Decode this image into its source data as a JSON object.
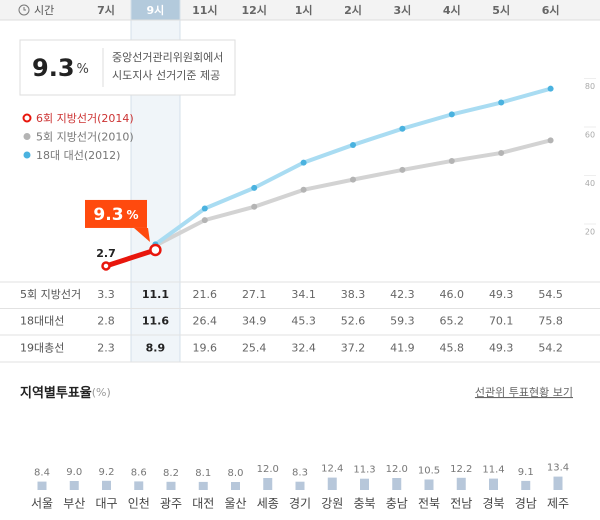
{
  "header": {
    "time_label": "시간"
  },
  "info": {
    "source": [
      "중앙선거관리위원회에서",
      "시도지사 선거기준 제공"
    ]
  },
  "chart_data": [
    {
      "type": "line",
      "unit": "%",
      "categories": [
        "7시",
        "9시",
        "11시",
        "12시",
        "1시",
        "2시",
        "3시",
        "4시",
        "5시",
        "6시"
      ],
      "ylim": [
        0,
        100
      ],
      "yticks": [
        20,
        40,
        60,
        80
      ],
      "series": [
        {
          "name": "6회 지방선거(2014)",
          "color": "#e8160c",
          "values": [
            2.7,
            9.3,
            null,
            null,
            null,
            null,
            null,
            null,
            null,
            null
          ]
        },
        {
          "name": "5회 지방선거(2010)",
          "color": "#b4b4b4",
          "values": [
            null,
            11.1,
            21.6,
            27.1,
            34.1,
            38.3,
            42.3,
            46.0,
            49.3,
            54.5
          ]
        },
        {
          "name": "18대 대선(2012)",
          "color": "#4ab2df",
          "values": [
            null,
            11.6,
            26.4,
            34.9,
            45.3,
            52.6,
            59.3,
            65.2,
            70.1,
            75.8
          ]
        }
      ]
    },
    {
      "type": "bar",
      "title": "지역별투표율",
      "unit_label": "(%)",
      "link": "선관위 투표현황 보기",
      "color": "#b7c7da",
      "ylim": [
        0,
        100
      ],
      "categories": [
        "서울",
        "부산",
        "대구",
        "인천",
        "광주",
        "대전",
        "울산",
        "세종",
        "경기",
        "강원",
        "충북",
        "충남",
        "전북",
        "전남",
        "경북",
        "경남",
        "제주"
      ],
      "values": [
        8.4,
        9.0,
        9.2,
        8.6,
        8.2,
        8.1,
        8.0,
        12.0,
        8.3,
        12.4,
        11.3,
        12.0,
        10.5,
        12.2,
        11.4,
        9.1,
        13.4
      ],
      "value_labels": [
        "8.4",
        "9.0",
        "9.2",
        "8.6",
        "8.2",
        "8.1",
        "8.0",
        "12.0",
        "8.3",
        "12.4",
        "11.3",
        "12.0",
        "10.5",
        "12.2",
        "11.4",
        "9.1",
        "13.4"
      ]
    }
  ],
  "table": {
    "rows": [
      {
        "label": "5회 지방선거",
        "values": [
          "3.3",
          "11.1",
          "21.6",
          "27.1",
          "34.1",
          "38.3",
          "42.3",
          "46.0",
          "49.3",
          "54.5"
        ]
      },
      {
        "label": "18대대선",
        "values": [
          "2.8",
          "11.6",
          "26.4",
          "34.9",
          "45.3",
          "52.6",
          "59.3",
          "65.2",
          "70.1",
          "75.8"
        ]
      },
      {
        "label": "19대총선",
        "values": [
          "2.3",
          "8.9",
          "19.6",
          "25.4",
          "32.4",
          "37.2",
          "41.9",
          "45.8",
          "49.3",
          "54.2"
        ]
      }
    ]
  }
}
